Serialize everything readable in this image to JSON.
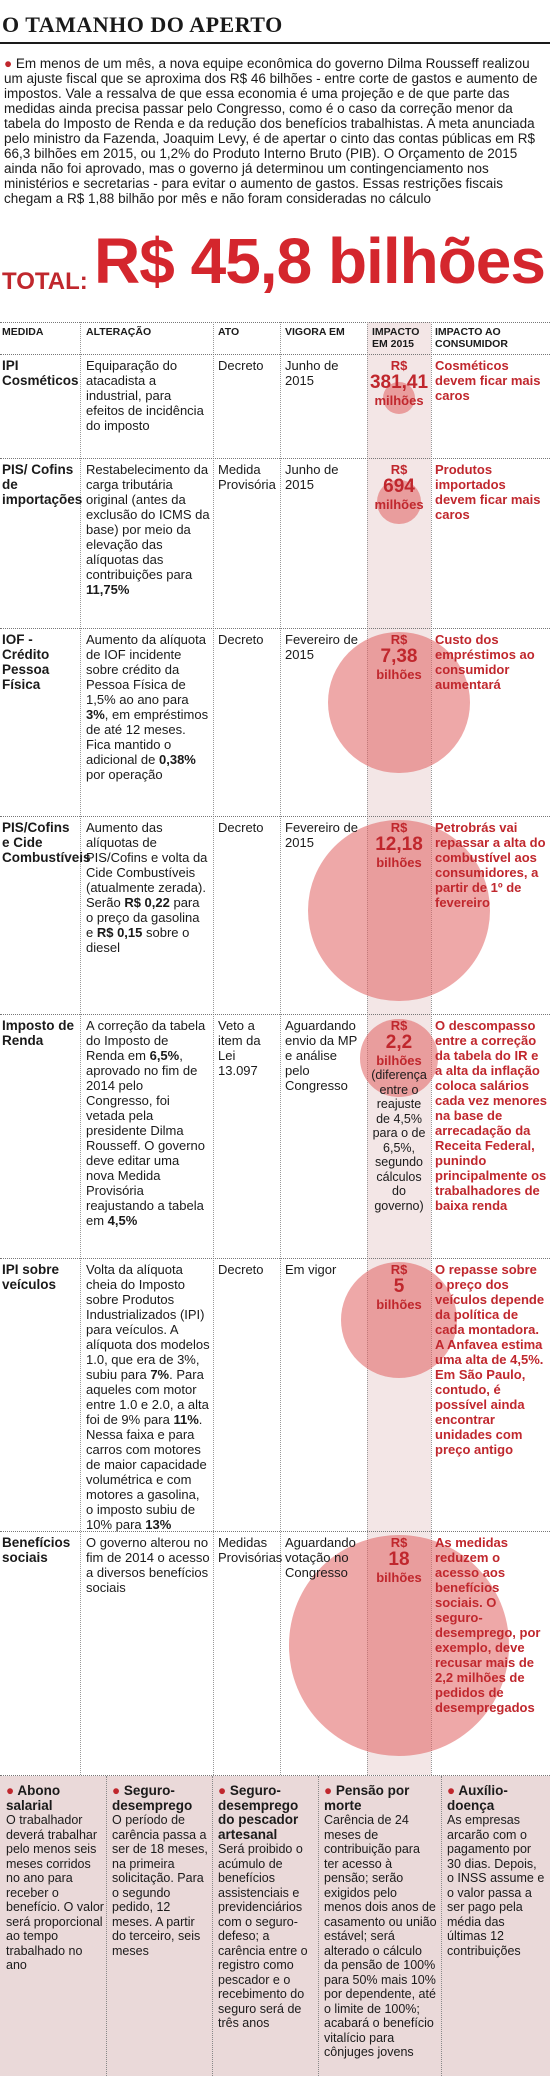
{
  "title": "O TAMANHO DO APERTO",
  "intro": "Em menos de um mês, a nova equipe econômica do governo Dilma Rousseff realizou um ajuste fiscal que se aproxima dos R$ 46 bilhões - entre corte de gastos e aumento de impostos. Vale a ressalva de que essa economia é uma projeção e de que parte das medidas ainda precisa passar pelo Congresso, como é o caso da correção menor da tabela do Imposto de Renda e da redução dos benefícios trabalhistas. A meta anunciada pelo ministro da Fazenda, Joaquim Levy, é de apertar o cinto das contas públicas em R$ 66,3 bilhões em 2015, ou 1,2% do Produto Interno Bruto (PIB). O Orçamento de 2015 ainda não foi aprovado, mas o governo já determinou um contingenciamento nos ministérios e secretarias - para evitar o aumento de gastos. Essas restrições fiscais chegam a R$ 1,88 bilhão por mês e não foram consideradas no cálculo",
  "total": {
    "label": "TOTAL:",
    "value": "R$ 45,8 bilhões"
  },
  "headers": {
    "medida": "MEDIDA",
    "alteracao": "ALTERAÇÃO",
    "ato": "ATO",
    "vigora": "VIGORA EM",
    "impacto": "IMPACTO EM 2015",
    "consumidor": "IMPACTO AO CONSUMIDOR"
  },
  "rows": [
    {
      "medida": "IPI Cosméticos",
      "alteracao_parts": [
        "Equiparação do atacadista a industrial, para efeitos de incidência do imposto"
      ],
      "ato": "Decreto",
      "vigora": "Junho de 2015",
      "impacto_prefix": "R$",
      "impacto_num": "381,41",
      "impacto_unit": "milhões",
      "impacto_note": "",
      "consumidor": "Cosméticos devem ficar mais caros",
      "bubble_billions": 0.38141
    },
    {
      "medida": "PIS/ Cofins de importações",
      "alteracao_parts": [
        "Restabelecimento da carga tributária original (antes da exclusão do ICMS da base) por meio da elevação das alíquotas das contribuições para ",
        "11,75%"
      ],
      "ato": "Medida Provisória",
      "vigora": "Junho de 2015",
      "impacto_prefix": "R$",
      "impacto_num": "694",
      "impacto_unit": "milhões",
      "impacto_note": "",
      "consumidor": "Produtos importados devem ficar mais caros",
      "bubble_billions": 0.694
    },
    {
      "medida": "IOF - Crédito Pessoa Física",
      "alteracao_parts": [
        "Aumento da alíquota de IOF incidente sobre crédito da Pessoa Física de 1,5% ao ano para ",
        "3%",
        ", em empréstimos de até 12 meses. Fica mantido o adicional de ",
        "0,38%",
        " por operação"
      ],
      "ato": "Decreto",
      "vigora": "Fevereiro de 2015",
      "impacto_prefix": "R$",
      "impacto_num": "7,38",
      "impacto_unit": "bilhões",
      "impacto_note": "",
      "consumidor": "Custo dos empréstimos ao consumidor aumentará",
      "bubble_billions": 7.38
    },
    {
      "medida": "PIS/Cofins e Cide Combustíveis",
      "alteracao_parts": [
        "Aumento das alíquotas de PIS/Cofins e volta da Cide Combustíveis (atualmente zerada). Serão ",
        "R$ 0,22",
        " para o preço da gasolina e ",
        "R$ 0,15",
        " sobre o diesel"
      ],
      "ato": "Decreto",
      "vigora": "Fevereiro de 2015",
      "impacto_prefix": "R$",
      "impacto_num": "12,18",
      "impacto_unit": "bilhões",
      "impacto_note": "",
      "consumidor": "Petrobrás vai repassar a alta do combustível aos consumidores, a partir de 1º de fevereiro",
      "bubble_billions": 12.18
    },
    {
      "medida": "Imposto de Renda",
      "alteracao_parts": [
        "A correção da tabela do Imposto de Renda em ",
        "6,5%",
        ", aprovado no fim de 2014 pelo Congresso, foi vetada pela presidente Dilma Rousseff. O governo deve editar uma nova Medida Provisória reajustando a tabela em ",
        "4,5%"
      ],
      "ato": "Veto a item da Lei 13.097",
      "vigora": "Aguardando envio da MP e análise pelo Congresso",
      "impacto_prefix": "R$",
      "impacto_num": "2,2",
      "impacto_unit": "bilhões",
      "impacto_note": "(diferença entre o reajuste de 4,5% para o de 6,5%, segundo cálculos do governo)",
      "consumidor": "O descompasso entre a correção da tabela do IR e a alta da inflação coloca salários cada vez menores na base de arrecadação da Receita Federal, punindo principalmente os trabalhadores de baixa renda",
      "bubble_billions": 2.2
    },
    {
      "medida": "IPI sobre veículos",
      "alteracao_parts": [
        "Volta da alíquota cheia do Imposto sobre Produtos Industrializados (IPI) para veículos. A alíquota dos modelos 1.0, que era de 3%, subiu para ",
        "7%",
        ". Para aqueles com motor entre 1.0 e 2.0, a alta foi de 9% para ",
        "11%",
        ". Nessa faixa e para carros com motores de maior capacidade volumétrica e com motores a gasolina, o imposto subiu de 10% para ",
        "13%"
      ],
      "ato": "Decreto",
      "vigora": "Em vigor",
      "impacto_prefix": "R$",
      "impacto_num": "5",
      "impacto_unit": "bilhões",
      "impacto_note": "",
      "consumidor": "O repasse sobre o preço dos veículos depende da política de cada montadora. A Anfavea estima uma alta de 4,5%. Em São Paulo, contudo, é possível ainda encontrar unidades com preço antigo",
      "bubble_billions": 5
    },
    {
      "medida": "Benefícios sociais",
      "alteracao_parts": [
        "O governo alterou no fim de 2014 o acesso a diversos benefícios sociais"
      ],
      "ato": "Medidas Provisórias",
      "vigora": "Aguardando votação no Congresso",
      "impacto_prefix": "R$",
      "impacto_num": "18",
      "impacto_unit": "bilhões",
      "impacto_note": "",
      "consumidor": "As medidas reduzem o acesso aos benefícios sociais. O seguro-desemprego, por exemplo, deve recusar mais de 2,2 milhões de pedidos de desempregados",
      "bubble_billions": 18
    }
  ],
  "boxes": [
    {
      "title": "Abono salarial",
      "text": "O trabalhador deverá trabalhar pelo menos seis meses corridos no ano para receber o benefício. O valor será proporcional ao tempo trabalhado no ano"
    },
    {
      "title": "Seguro-desemprego",
      "text": "O período de carência passa a ser de 18 meses, na primeira solicitação. Para o segundo pedido, 12 meses. A partir do terceiro, seis meses"
    },
    {
      "title": "Seguro-desemprego do pescador artesanal",
      "text": "Será proibido o acúmulo de benefícios assistenciais e previdenciários com o seguro-defeso; a carência entre o registro como pescador e o recebimento do seguro será de três anos"
    },
    {
      "title": "Pensão por morte",
      "text": "Carência de 24 meses de contribuição para ter acesso à pensão; serão exigidos pelo menos dois anos de casamento ou união estável; será alterado o cálculo da pensão de 100% para 50% mais 10% por dependente, até o limite de 100%; acabará o benefício vitalício para cônjuges jovens"
    },
    {
      "title": "Auxílio-doença",
      "text": "As empresas arcarão com o pagamento por 30 dias. Depois, o INSS assume e o valor passa a ser pago pela média das últimas 12 contribuições"
    }
  ]
}
